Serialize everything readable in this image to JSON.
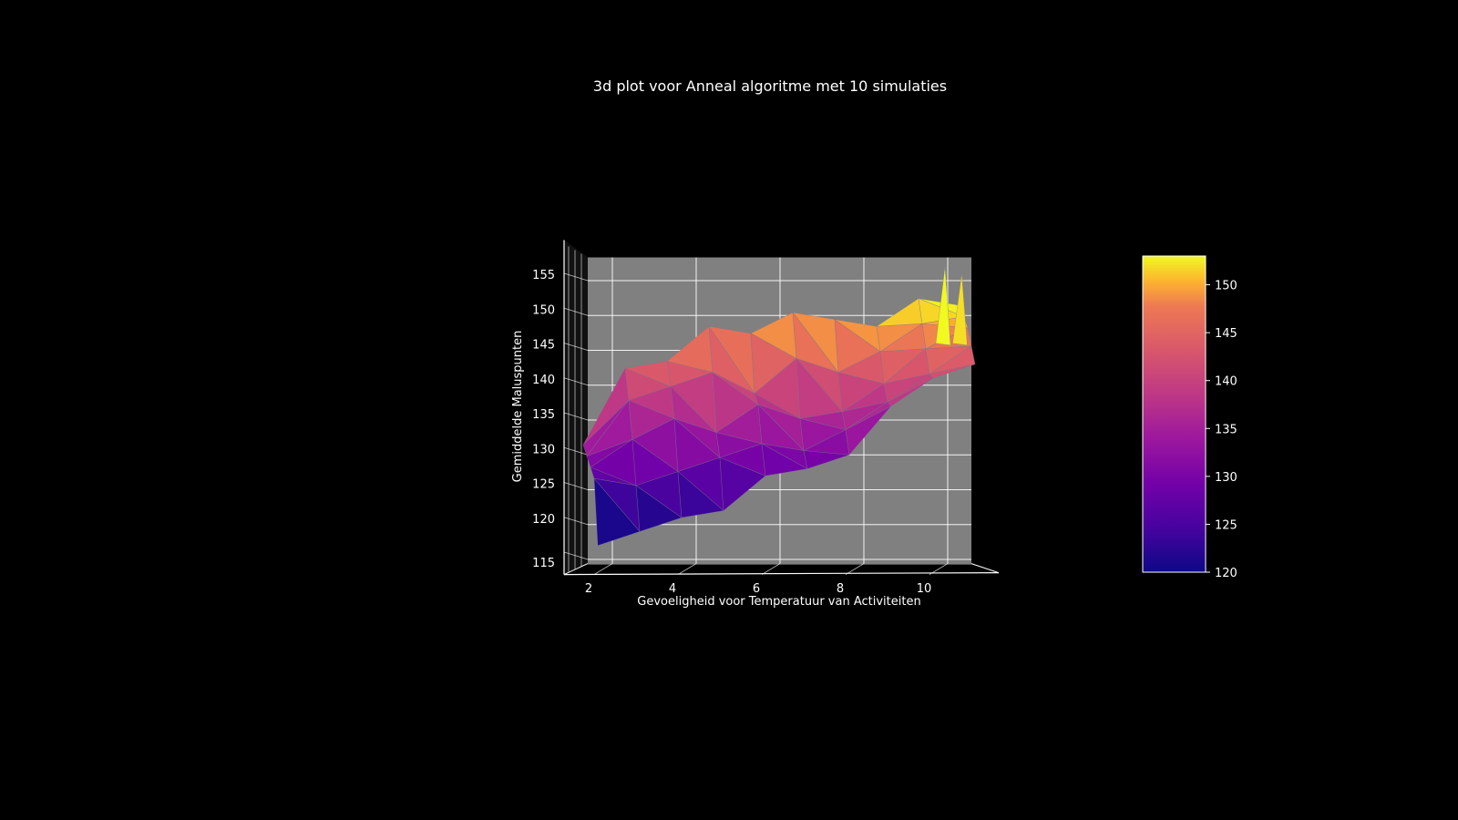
{
  "chart_data": {
    "type": "surface3d",
    "title": "3d plot voor Anneal algoritme met 10 simulaties",
    "xlabel": "Gevoeligheid voor Temperatuur van Activiteiten",
    "ylabel": "",
    "zlabel": "Gemiddelde Maluspunten",
    "xlim": [
      1.4,
      11.0
    ],
    "zlim": [
      114.4,
      158.2
    ],
    "x_ticks": [
      2,
      4,
      6,
      8,
      10
    ],
    "z_ticks": [
      115,
      120,
      125,
      130,
      135,
      140,
      145,
      150,
      155
    ],
    "colormap": "plasma",
    "colorbar": {
      "min": 120,
      "max": 153,
      "ticks": [
        120,
        125,
        130,
        135,
        140,
        145,
        150
      ]
    },
    "background": "#000000",
    "pane_color": "#808080",
    "grid": true,
    "x": [
      2,
      3,
      4,
      5,
      6,
      7,
      8,
      9,
      10,
      11
    ],
    "rows": [
      {
        "name": "front",
        "values": [
          117,
          119,
          121,
          122,
          127,
          128,
          130,
          137,
          141,
          143
        ]
      },
      {
        "name": "row2",
        "values": [
          127,
          126,
          128,
          130,
          132,
          131,
          134,
          138,
          142,
          146
        ]
      },
      {
        "name": "row3",
        "values": [
          129,
          133,
          136,
          134,
          138,
          136,
          137,
          141,
          146,
          149
        ]
      },
      {
        "name": "row4",
        "values": [
          131,
          139,
          141,
          143,
          140,
          145,
          143,
          146,
          150,
          151
        ]
      },
      {
        "name": "back",
        "values": [
          133,
          144,
          145,
          150,
          149,
          152,
          151,
          150,
          154,
          153
        ]
      }
    ],
    "spikes": [
      {
        "x": 10.5,
        "z": 157
      },
      {
        "x": 10.9,
        "z": 156
      }
    ]
  }
}
